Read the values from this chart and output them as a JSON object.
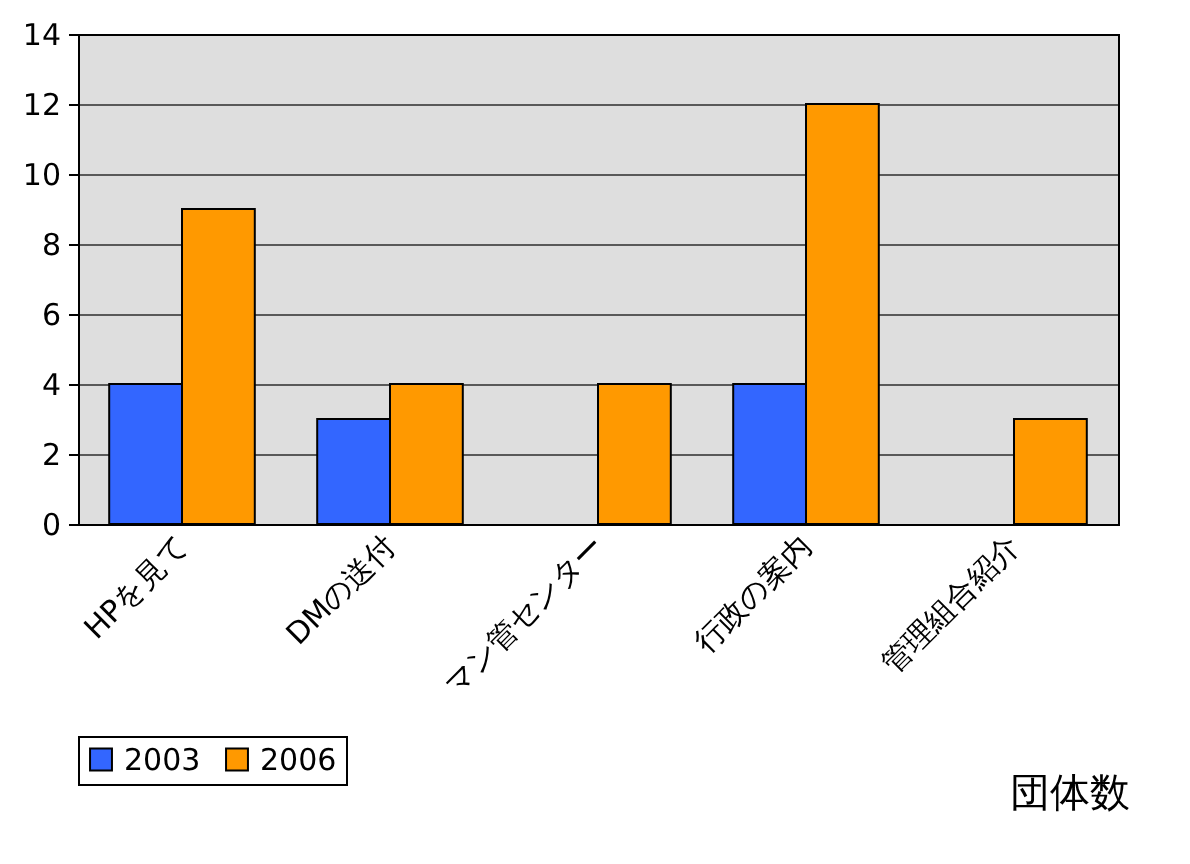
{
  "chart_data": {
    "type": "bar",
    "categories": [
      "HPを見て",
      "DMの送付",
      "マン管センター",
      "行政の案内",
      "管理組合紹介"
    ],
    "series": [
      {
        "name": "2003",
        "color": "#3366ff",
        "values": [
          4,
          3,
          null,
          4,
          null
        ]
      },
      {
        "name": "2006",
        "color": "#ff9900",
        "values": [
          9,
          4,
          4,
          12,
          3
        ]
      }
    ],
    "ylim": [
      0,
      14
    ],
    "yticks": [
      0,
      2,
      4,
      6,
      8,
      10,
      12,
      14
    ],
    "grid": "y",
    "legend": "bottom",
    "annotations": [
      "団体数"
    ]
  }
}
